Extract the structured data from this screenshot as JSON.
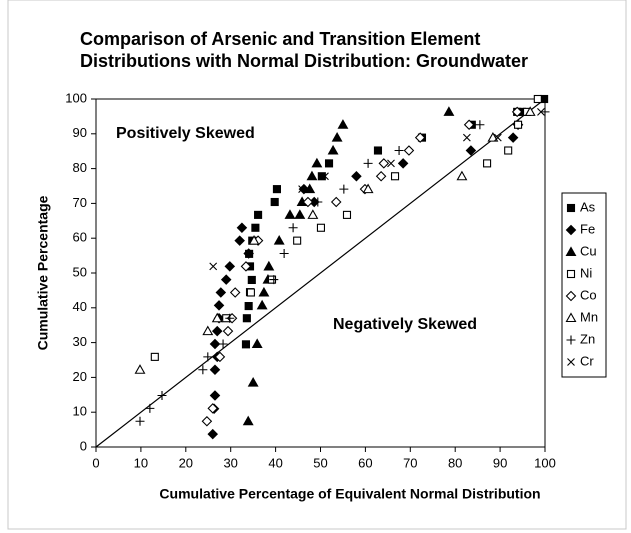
{
  "chart_data": {
    "type": "scatter",
    "title": [
      "Comparison of Arsenic and Transition Element",
      "Distributions with Normal Distribution: Groundwater"
    ],
    "x_label": "Cumulative Percentage of Equivalent Normal Distribution",
    "y_label": "Cumulative Percentage",
    "annotations": [
      "Positively Skewed",
      "Negatively Skewed"
    ],
    "xlim": [
      0,
      100
    ],
    "ylim": [
      0,
      100
    ],
    "xticks": [
      0,
      10,
      20,
      30,
      40,
      50,
      60,
      70,
      80,
      90,
      100
    ],
    "yticks": [
      0,
      10,
      20,
      30,
      40,
      50,
      60,
      70,
      80,
      90,
      100
    ],
    "legend": "right",
    "series": [
      {
        "name": "As",
        "color": "#000000",
        "marker": "square",
        "filled": true,
        "x": [
          33.4,
          33.6,
          34,
          34.3,
          34.7,
          34.3,
          34.1,
          34.8,
          35.5,
          36.1,
          39.8,
          40.3,
          50.3,
          51.9,
          62.8,
          72.6,
          83.7,
          93.8,
          94.9,
          99.8
        ],
        "values": [
          29.5,
          37,
          40.5,
          44.5,
          48,
          51.9,
          55.5,
          59.3,
          63,
          66.7,
          70.4,
          74.1,
          77.8,
          81.5,
          85.2,
          88.9,
          92.6,
          96.3,
          96.3,
          100
        ]
      },
      {
        "name": "Fe",
        "color": "#000000",
        "marker": "diamond",
        "filled": true,
        "x": [
          26,
          26.3,
          26.5,
          26.5,
          27,
          26.5,
          27,
          27.4,
          27.4,
          27.8,
          29,
          29.8,
          34,
          32,
          32.5,
          48.6,
          46.3,
          58,
          68.4,
          83.5,
          92.9,
          94
        ],
        "values": [
          3.7,
          11,
          14.8,
          22.2,
          25.9,
          29.6,
          33.3,
          37,
          40.7,
          44.4,
          48.1,
          51.9,
          55.6,
          59.3,
          63,
          70.4,
          74.1,
          77.8,
          81.5,
          85.2,
          88.9,
          92.6
        ]
      },
      {
        "name": "Cu",
        "color": "#000000",
        "marker": "triangle",
        "filled": true,
        "x": [
          33.9,
          35,
          35.9,
          37,
          37.4,
          38.3,
          38.5,
          40.8,
          43.2,
          45.4,
          45.9,
          47.6,
          48.1,
          49.2,
          52.8,
          53.7,
          55,
          78.6
        ],
        "values": [
          7.4,
          18.5,
          29.6,
          40.7,
          44.4,
          48.1,
          51.9,
          59.3,
          66.7,
          66.7,
          70.4,
          74.1,
          77.8,
          81.5,
          85.2,
          88.9,
          92.6,
          96.3
        ]
      },
      {
        "name": "Ni",
        "color": "#000000",
        "marker": "square",
        "filled": false,
        "x": [
          13.1,
          29,
          34.5,
          39.2,
          44.8,
          50.1,
          55.9,
          66.6,
          87.1,
          91.8,
          94,
          96,
          98.4
        ],
        "values": [
          25.9,
          37,
          44.4,
          48.1,
          59.3,
          63,
          66.7,
          77.8,
          81.5,
          85.2,
          92.6,
          96.3,
          100
        ]
      },
      {
        "name": "Co",
        "color": "#000000",
        "marker": "diamond",
        "filled": false,
        "x": [
          24.7,
          26,
          27.6,
          29.4,
          30.3,
          31,
          33.4,
          36.1,
          47.2,
          53.5,
          59.9,
          63.5,
          64.1,
          69.7,
          72.2,
          83.1,
          93.8
        ],
        "values": [
          7.4,
          11.1,
          25.9,
          33.3,
          37,
          44.4,
          51.9,
          59.3,
          70.4,
          70.4,
          74.1,
          77.8,
          81.5,
          85.2,
          88.9,
          92.6,
          96.3
        ]
      },
      {
        "name": "Mn",
        "color": "#000000",
        "marker": "triangle",
        "filled": false,
        "x": [
          9.8,
          24.9,
          27,
          35.2,
          48.3,
          60.6,
          81.5,
          88.4,
          96.7
        ],
        "values": [
          22.2,
          33.3,
          37,
          59.3,
          66.7,
          74.1,
          77.8,
          88.9,
          96.3
        ]
      },
      {
        "name": "Zn",
        "color": "#000000",
        "marker": "plus",
        "filled": false,
        "x": [
          9.8,
          12,
          14.7,
          23.8,
          24.9,
          28.3,
          29.8,
          39.6,
          41.9,
          43.9,
          49.4,
          55.2,
          60.6,
          67.5,
          85.5,
          100
        ],
        "values": [
          7.4,
          11.1,
          14.8,
          22.2,
          25.9,
          29.6,
          37,
          48.1,
          55.6,
          63,
          70.4,
          74.1,
          81.5,
          85.2,
          92.6,
          96.3
        ]
      },
      {
        "name": "Cr",
        "color": "#000000",
        "marker": "cross",
        "filled": false,
        "x": [
          26.1,
          45.9,
          51,
          65.7,
          82.6,
          89.5,
          99.1
        ],
        "values": [
          51.9,
          74.1,
          77.8,
          81.5,
          88.9,
          88.9,
          96.3
        ]
      }
    ]
  }
}
